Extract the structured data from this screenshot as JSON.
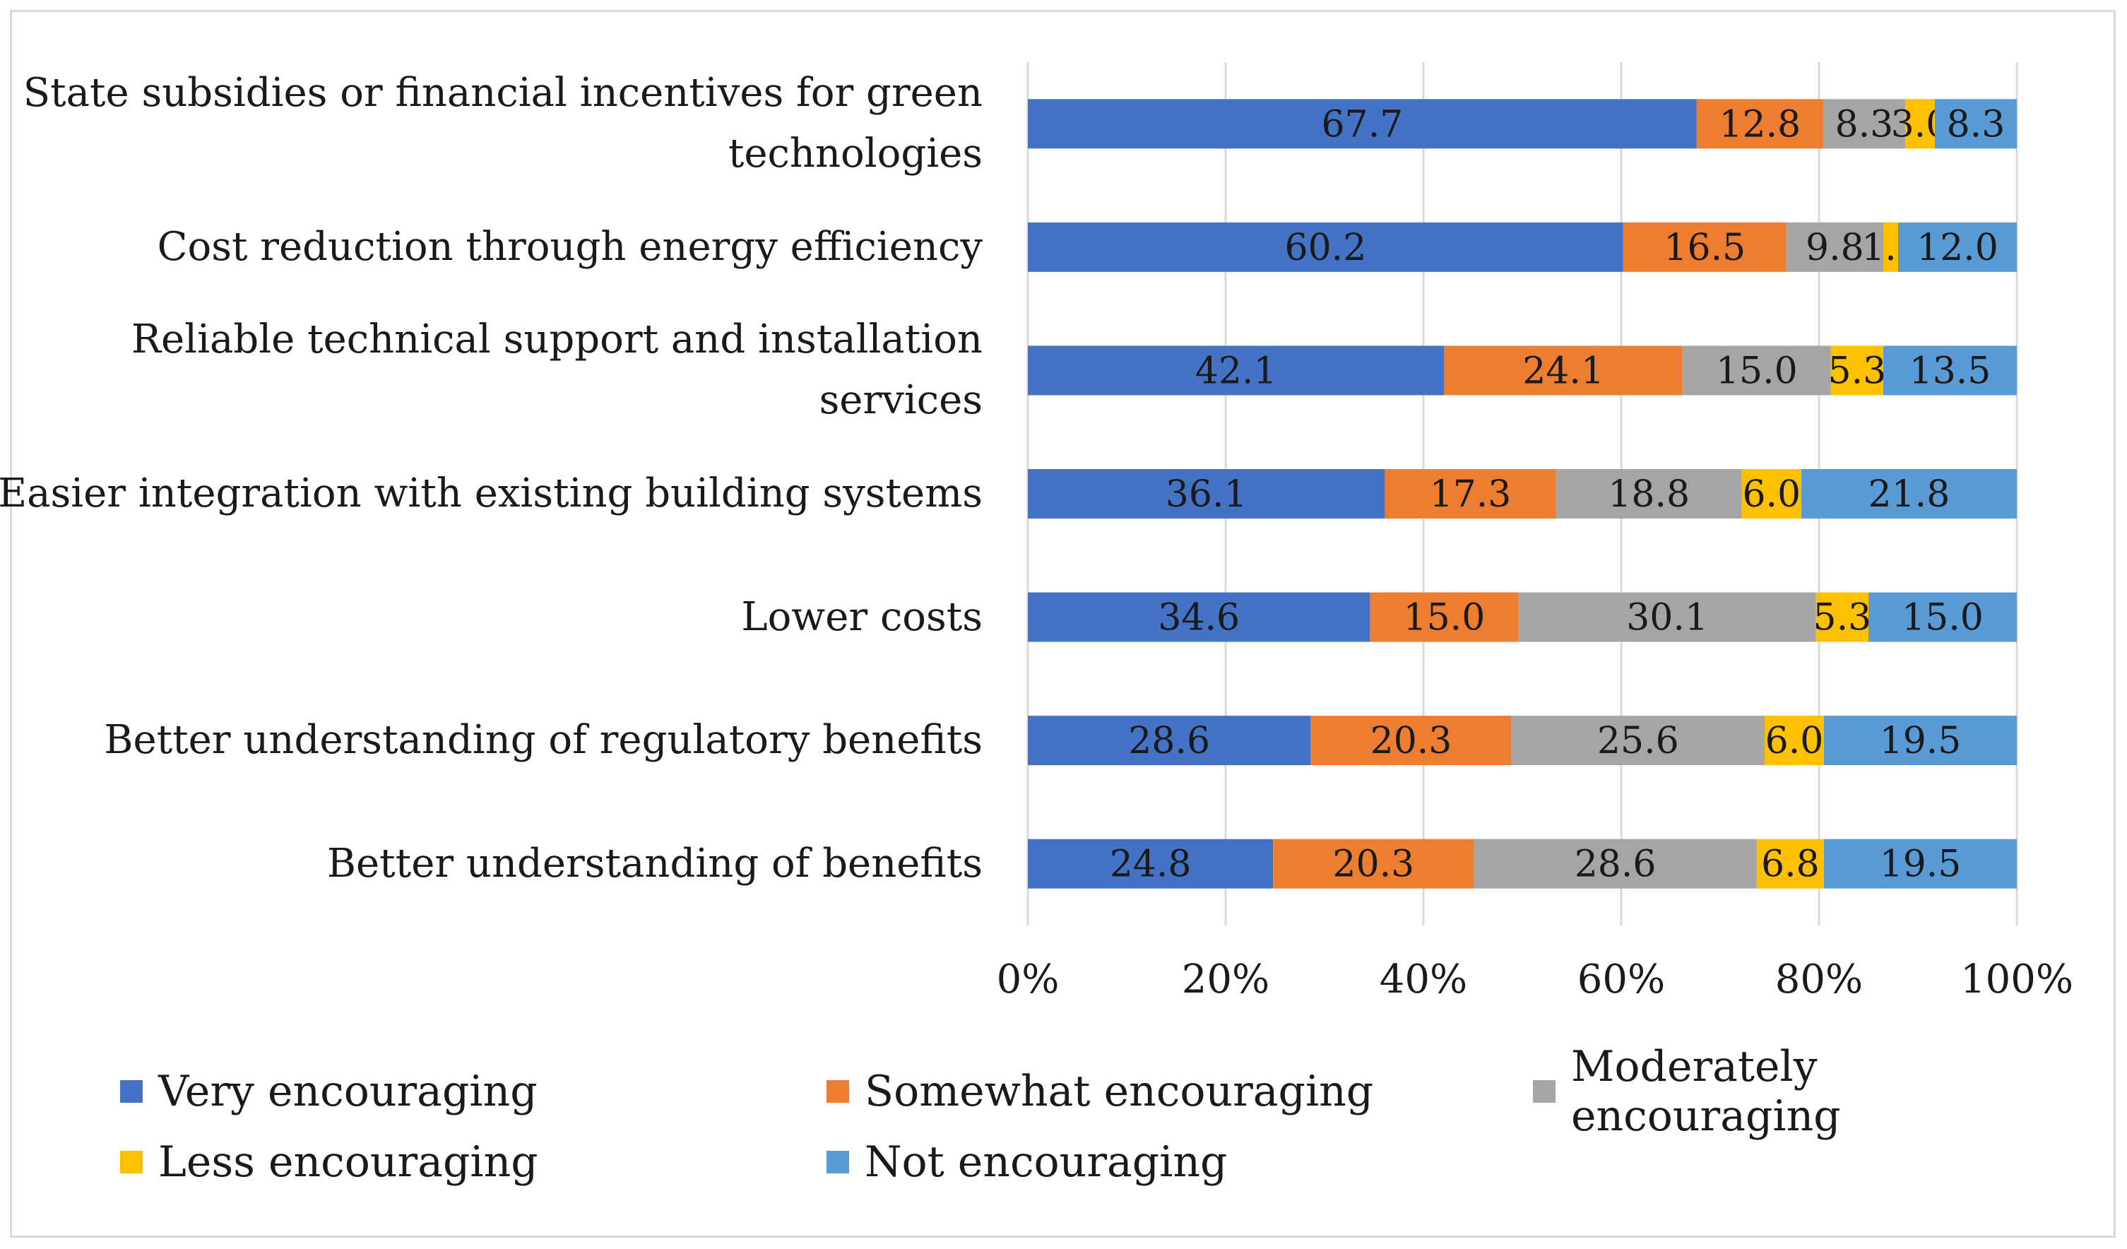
{
  "chart_data": {
    "type": "bar",
    "orientation": "horizontal",
    "stacked": "percent",
    "categories": [
      "State subsidies or financial incentives for green technologies",
      "Cost reduction through energy efficiency",
      "Reliable technical support and installation services",
      "Easier integration with existing building systems",
      "Lower costs",
      "Better understanding of regulatory benefits",
      "Better understanding of benefits"
    ],
    "series": [
      {
        "name": "Very encouraging",
        "color": "#4472C4",
        "values": [
          67.7,
          60.2,
          42.1,
          36.1,
          34.6,
          28.6,
          24.8
        ]
      },
      {
        "name": "Somewhat encouraging",
        "color": "#ED7D31",
        "values": [
          12.8,
          16.5,
          24.1,
          17.3,
          15.0,
          20.3,
          20.3
        ]
      },
      {
        "name": "Moderately encouraging",
        "color": "#A5A5A5",
        "values": [
          8.3,
          9.8,
          15.0,
          18.8,
          30.1,
          25.6,
          28.6
        ]
      },
      {
        "name": "Less encouraging",
        "color": "#FFC000",
        "values": [
          3.0,
          1.5,
          5.3,
          6.0,
          5.3,
          6.0,
          6.8
        ]
      },
      {
        "name": "Not encouraging",
        "color": "#5B9BD5",
        "values": [
          8.3,
          12.0,
          13.5,
          21.8,
          15.0,
          19.5,
          19.5
        ]
      }
    ],
    "xticks": [
      "0%",
      "20%",
      "40%",
      "60%",
      "80%",
      "100%"
    ],
    "xlim": [
      0,
      100
    ],
    "grid": "vertical",
    "legend_position": "bottom"
  }
}
